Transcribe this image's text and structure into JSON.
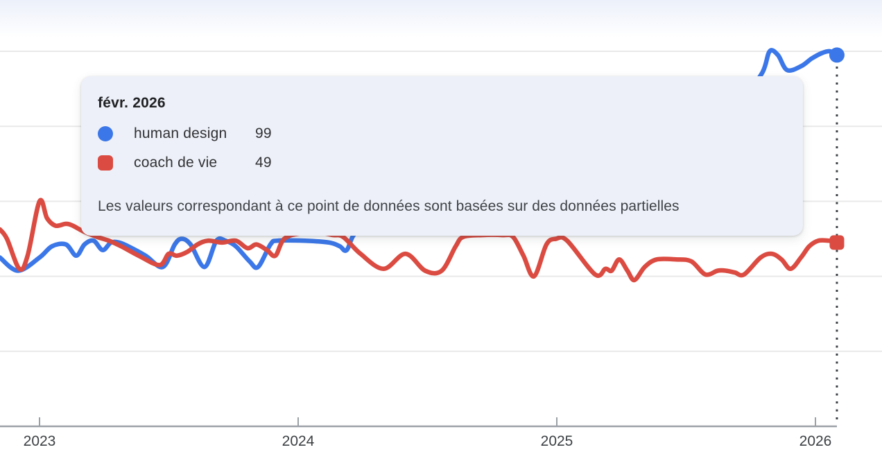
{
  "tooltip": {
    "date_label": "févr. 2026",
    "rows": [
      {
        "term": "human design",
        "value": "99",
        "color": "#3b77e8",
        "marker": "circle"
      },
      {
        "term": "coach de vie",
        "value": "49",
        "color": "#db4b41",
        "marker": "square"
      }
    ],
    "note": "Les valeurs correspondant à ce point de données sont basées sur des données partielles"
  },
  "colors": {
    "axis": "#9aa0a6",
    "gridline": "#e9e9e9",
    "dotted_line": "#3c4043",
    "tick_label": "#3c4043",
    "tooltip_bg": "#edf0f8",
    "series_blue": "#3b77e8",
    "series_red": "#db4b41"
  },
  "chart_data": {
    "type": "line",
    "xlabel": "",
    "ylabel": "",
    "ylim": [
      0,
      100
    ],
    "grid": true,
    "gridline_values": [
      20,
      40,
      60,
      80,
      100
    ],
    "x_ticks": [
      {
        "label": "2023",
        "year": 2023
      },
      {
        "label": "2024",
        "year": 2024
      },
      {
        "label": "2025",
        "year": 2025
      },
      {
        "label": "2026",
        "year": 2026
      }
    ],
    "hover_point": {
      "t": 2026.083,
      "label": "févr. 2026",
      "partial_data": true
    },
    "legend_position": "tooltip",
    "series": [
      {
        "name": "human design",
        "color": "#3b77e8",
        "marker": "circle",
        "end_value": 99,
        "points": [
          [
            2022.847,
            45
          ],
          [
            2022.917,
            41.5
          ],
          [
            2023.0,
            45
          ],
          [
            2023.048,
            48
          ],
          [
            2023.102,
            48.5
          ],
          [
            2023.142,
            45.5
          ],
          [
            2023.174,
            48.5
          ],
          [
            2023.209,
            49.5
          ],
          [
            2023.244,
            47
          ],
          [
            2023.276,
            49
          ],
          [
            2023.308,
            49
          ],
          [
            2023.343,
            48
          ],
          [
            2023.41,
            45.5
          ],
          [
            2023.477,
            42.5
          ],
          [
            2023.523,
            48.5
          ],
          [
            2023.55,
            50
          ],
          [
            2023.584,
            48.5
          ],
          [
            2023.638,
            42.5
          ],
          [
            2023.684,
            49.5
          ],
          [
            2023.719,
            49.5
          ],
          [
            2023.759,
            48
          ],
          [
            2023.812,
            44
          ],
          [
            2023.845,
            42.5
          ],
          [
            2023.893,
            48.5
          ],
          [
            2023.92,
            49.5
          ],
          [
            2024.027,
            49.5
          ],
          [
            2024.121,
            49
          ],
          [
            2024.161,
            48
          ],
          [
            2024.188,
            47
          ],
          [
            2024.228,
            52
          ],
          [
            2024.348,
            55
          ],
          [
            2024.59,
            57.5
          ],
          [
            2024.858,
            60
          ],
          [
            2025.126,
            64
          ],
          [
            2025.394,
            67.5
          ],
          [
            2025.608,
            77
          ],
          [
            2025.729,
            88
          ],
          [
            2025.796,
            94.5
          ],
          [
            2025.823,
            100
          ],
          [
            2025.855,
            99
          ],
          [
            2025.89,
            95
          ],
          [
            2025.944,
            96
          ],
          [
            2025.984,
            98
          ],
          [
            2026.024,
            99.5
          ],
          [
            2026.056,
            100
          ],
          [
            2026.083,
            99
          ]
        ]
      },
      {
        "name": "coach de vie",
        "color": "#db4b41",
        "marker": "square",
        "end_value": 49,
        "points": [
          [
            2022.847,
            52.5
          ],
          [
            2022.874,
            50
          ],
          [
            2022.922,
            42
          ],
          [
            2022.954,
            45.5
          ],
          [
            2023.0,
            60
          ],
          [
            2023.029,
            55.5
          ],
          [
            2023.062,
            53.5
          ],
          [
            2023.102,
            54
          ],
          [
            2023.129,
            53.5
          ],
          [
            2023.169,
            52
          ],
          [
            2023.223,
            50.5
          ],
          [
            2023.268,
            49.5
          ],
          [
            2023.316,
            48
          ],
          [
            2023.383,
            45.5
          ],
          [
            2023.464,
            43
          ],
          [
            2023.499,
            46
          ],
          [
            2023.531,
            45.5
          ],
          [
            2023.571,
            46.5
          ],
          [
            2023.611,
            48.5
          ],
          [
            2023.651,
            49.5
          ],
          [
            2023.705,
            49
          ],
          [
            2023.759,
            49.5
          ],
          [
            2023.804,
            47.5
          ],
          [
            2023.839,
            48.5
          ],
          [
            2023.879,
            47
          ],
          [
            2023.912,
            45.5
          ],
          [
            2023.946,
            50
          ],
          [
            2024.013,
            51.5
          ],
          [
            2024.094,
            51.5
          ],
          [
            2024.134,
            51
          ],
          [
            2024.174,
            50.5
          ],
          [
            2024.241,
            46
          ],
          [
            2024.33,
            42
          ],
          [
            2024.415,
            46
          ],
          [
            2024.491,
            41.5
          ],
          [
            2024.555,
            41.5
          ],
          [
            2024.609,
            48
          ],
          [
            2024.638,
            50.5
          ],
          [
            2024.71,
            51
          ],
          [
            2024.791,
            51
          ],
          [
            2024.831,
            50.5
          ],
          [
            2024.871,
            45.5
          ],
          [
            2024.912,
            40
          ],
          [
            2024.96,
            48.5
          ],
          [
            2024.997,
            50
          ],
          [
            2025.04,
            49.5
          ],
          [
            2025.148,
            40.5
          ],
          [
            2025.188,
            42
          ],
          [
            2025.212,
            41.5
          ],
          [
            2025.241,
            44.5
          ],
          [
            2025.273,
            41.5
          ],
          [
            2025.3,
            39
          ],
          [
            2025.34,
            42.5
          ],
          [
            2025.386,
            44.5
          ],
          [
            2025.461,
            44.5
          ],
          [
            2025.52,
            44
          ],
          [
            2025.574,
            40.5
          ],
          [
            2025.622,
            41.5
          ],
          [
            2025.654,
            41.5
          ],
          [
            2025.689,
            41
          ],
          [
            2025.724,
            40.5
          ],
          [
            2025.788,
            45
          ],
          [
            2025.831,
            46
          ],
          [
            2025.869,
            44.5
          ],
          [
            2025.904,
            42
          ],
          [
            2025.944,
            45
          ],
          [
            2025.976,
            48
          ],
          [
            2026.011,
            49.5
          ],
          [
            2026.051,
            49.5
          ],
          [
            2026.083,
            49
          ]
        ]
      }
    ]
  }
}
